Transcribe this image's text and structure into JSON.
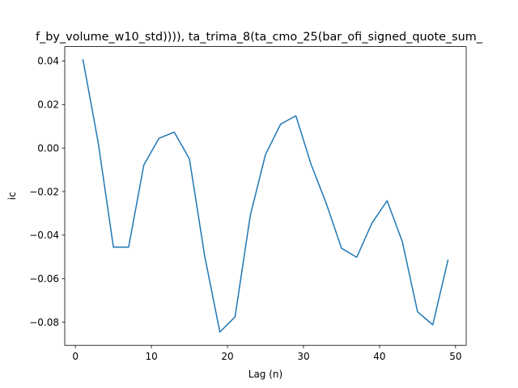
{
  "chart_data": {
    "type": "line",
    "title": "f_by_volume_w10_std)))), ta_trima_8(ta_cmo_25(bar_ofi_signed_quote_sum_",
    "xlabel": "Lag (n)",
    "ylabel": "ic",
    "xlim": [
      -1.4,
      51.4
    ],
    "ylim": [
      -0.0906,
      0.0466
    ],
    "xticks": [
      0,
      10,
      20,
      30,
      40,
      50
    ],
    "xtick_labels": [
      "0",
      "10",
      "20",
      "30",
      "40",
      "50"
    ],
    "yticks": [
      -0.08,
      -0.06,
      -0.04,
      -0.02,
      0.0,
      0.02,
      0.04
    ],
    "ytick_labels": [
      "−0.08",
      "−0.06",
      "−0.04",
      "−0.02",
      "0.00",
      "0.02",
      "0.04"
    ],
    "grid": false,
    "series": [
      {
        "color": "#1f77b4",
        "x": [
          1,
          3,
          5,
          7,
          9,
          11,
          13,
          15,
          17,
          19,
          21,
          23,
          25,
          27,
          29,
          31,
          33,
          35,
          37,
          39,
          41,
          43,
          45,
          47,
          49
        ],
        "y": [
          0.0405,
          0.0025,
          -0.0455,
          -0.0455,
          -0.0078,
          0.0045,
          0.0073,
          -0.005,
          -0.0495,
          -0.0845,
          -0.0775,
          -0.031,
          -0.003,
          0.011,
          0.0148,
          -0.0075,
          -0.0255,
          -0.046,
          -0.0502,
          -0.0345,
          -0.0242,
          -0.043,
          -0.0752,
          -0.0812,
          -0.0515
        ]
      }
    ]
  }
}
